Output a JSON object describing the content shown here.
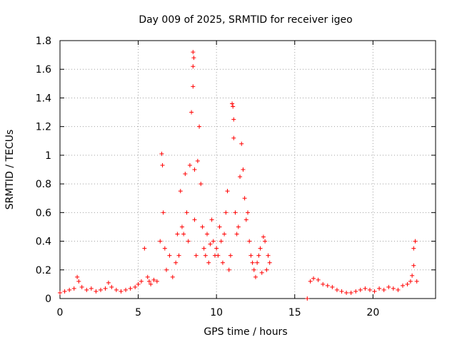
{
  "chart_data": {
    "type": "scatter",
    "title": "Day 009 of 2025, SRMTID for receiver igeo",
    "xlabel": "GPS time / hours",
    "ylabel": "SRMTID / TECUs",
    "xlim": [
      0,
      24
    ],
    "ylim": [
      0,
      1.8
    ],
    "x_ticks": [
      0,
      5,
      10,
      15,
      20
    ],
    "x_tick_labels": [
      "0",
      "5",
      "10",
      "15",
      "20"
    ],
    "y_ticks": [
      0,
      0.2,
      0.4,
      0.6,
      0.8,
      1,
      1.2,
      1.4,
      1.6,
      1.8
    ],
    "y_tick_labels": [
      "0",
      "0.2",
      "0.4",
      "0.6",
      "0.8",
      "1",
      "1.2",
      "1.4",
      "1.6",
      "1.8"
    ],
    "grid": true,
    "marker": "+",
    "series": [
      {
        "name": "SRMTID",
        "color": "#ff0000",
        "x": [
          0.0,
          0.3,
          0.6,
          0.9,
          1.1,
          1.2,
          1.4,
          1.7,
          2.0,
          2.3,
          2.6,
          2.9,
          3.1,
          3.3,
          3.6,
          3.9,
          4.2,
          4.5,
          4.8,
          5.0,
          5.2,
          5.4,
          5.6,
          5.7,
          5.8,
          6.0,
          6.2,
          6.4,
          6.5,
          6.55,
          6.6,
          6.7,
          6.8,
          7.0,
          7.2,
          7.4,
          7.5,
          7.6,
          7.7,
          7.8,
          7.9,
          8.0,
          8.1,
          8.2,
          8.3,
          8.4,
          8.5,
          8.5,
          8.5,
          8.55,
          8.6,
          8.6,
          8.7,
          8.8,
          8.9,
          9.0,
          9.1,
          9.2,
          9.3,
          9.4,
          9.5,
          9.6,
          9.7,
          9.8,
          9.9,
          10.0,
          10.1,
          10.2,
          10.3,
          10.4,
          10.5,
          10.6,
          10.7,
          10.8,
          10.9,
          11.0,
          11.05,
          11.1,
          11.1,
          11.2,
          11.3,
          11.4,
          11.5,
          11.6,
          11.7,
          11.8,
          11.9,
          12.0,
          12.1,
          12.2,
          12.3,
          12.4,
          12.5,
          12.6,
          12.7,
          12.8,
          12.9,
          13.0,
          13.1,
          13.2,
          13.3,
          13.4,
          15.8,
          16.0,
          16.2,
          16.5,
          16.8,
          17.1,
          17.4,
          17.7,
          18.0,
          18.3,
          18.6,
          18.9,
          19.2,
          19.5,
          19.8,
          20.1,
          20.4,
          20.7,
          21.0,
          21.3,
          21.6,
          21.9,
          22.2,
          22.4,
          22.5,
          22.6,
          22.6,
          22.7,
          22.8
        ],
        "y": [
          0.04,
          0.05,
          0.06,
          0.07,
          0.15,
          0.12,
          0.08,
          0.06,
          0.07,
          0.05,
          0.06,
          0.07,
          0.11,
          0.08,
          0.06,
          0.05,
          0.06,
          0.07,
          0.08,
          0.1,
          0.12,
          0.35,
          0.15,
          0.12,
          0.1,
          0.13,
          0.12,
          0.4,
          1.01,
          0.93,
          0.6,
          0.35,
          0.2,
          0.3,
          0.15,
          0.25,
          0.45,
          0.3,
          0.75,
          0.5,
          0.45,
          0.87,
          0.6,
          0.4,
          0.93,
          1.3,
          1.48,
          1.62,
          1.72,
          1.68,
          0.9,
          0.55,
          0.3,
          0.96,
          1.2,
          0.8,
          0.5,
          0.35,
          0.3,
          0.45,
          0.25,
          0.38,
          0.55,
          0.4,
          0.3,
          0.35,
          0.3,
          0.5,
          0.4,
          0.25,
          0.45,
          0.6,
          0.75,
          0.2,
          0.3,
          1.36,
          1.34,
          1.25,
          1.12,
          0.6,
          0.45,
          0.5,
          0.85,
          1.08,
          0.9,
          0.7,
          0.55,
          0.6,
          0.4,
          0.3,
          0.25,
          0.2,
          0.15,
          0.25,
          0.3,
          0.35,
          0.18,
          0.43,
          0.4,
          0.2,
          0.3,
          0.25,
          0.0,
          0.12,
          0.14,
          0.13,
          0.1,
          0.09,
          0.08,
          0.06,
          0.05,
          0.04,
          0.04,
          0.05,
          0.06,
          0.07,
          0.06,
          0.05,
          0.07,
          0.06,
          0.08,
          0.07,
          0.06,
          0.09,
          0.1,
          0.12,
          0.16,
          0.23,
          0.35,
          0.4,
          0.12
        ]
      }
    ]
  }
}
